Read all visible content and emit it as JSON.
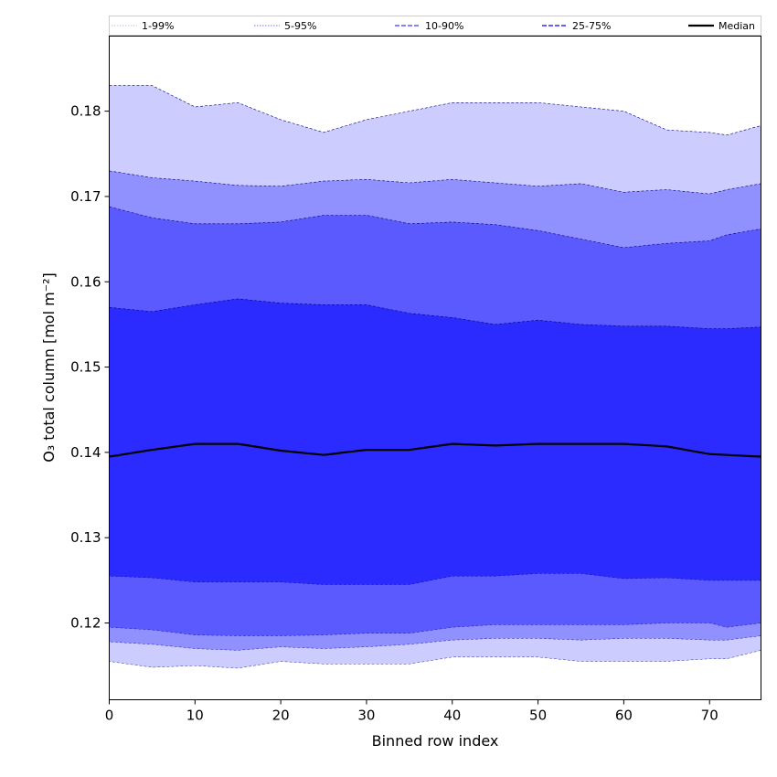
{
  "chart_data": {
    "type": "area",
    "xlabel": "Binned row index",
    "ylabel": "O₃ total column [mol m⁻²]",
    "xlim": [
      0,
      76
    ],
    "ylim": [
      0.111,
      0.1888
    ],
    "xticks": [
      0,
      10,
      20,
      30,
      40,
      50,
      60,
      70
    ],
    "yticks": [
      0.12,
      0.13,
      0.14,
      0.15,
      0.16,
      0.17,
      0.18
    ],
    "legend": {
      "position": "top",
      "entries": [
        {
          "label": "1-99%",
          "color": "#ccccff",
          "style": "dotted"
        },
        {
          "label": "5-95%",
          "color": "#9090ff",
          "style": "dotted"
        },
        {
          "label": "10-90%",
          "color": "#5a5aff",
          "style": "dashed"
        },
        {
          "label": "25-75%",
          "color": "#2b2bff",
          "style": "dashed"
        },
        {
          "label": "Median",
          "color": "#000000",
          "style": "solid"
        }
      ]
    },
    "x_knots": [
      0,
      5,
      10,
      15,
      20,
      25,
      30,
      35,
      40,
      45,
      50,
      55,
      60,
      65,
      70,
      72,
      76
    ],
    "series": [
      {
        "name": "1-99%",
        "color": "#ccccff",
        "lower": [
          0.1155,
          0.1148,
          0.115,
          0.1147,
          0.1155,
          0.1152,
          0.1152,
          0.1152,
          0.116,
          0.116,
          0.116,
          0.1155,
          0.1155,
          0.1155,
          0.1158,
          0.1158,
          0.1168
        ],
        "upper": [
          0.183,
          0.183,
          0.1805,
          0.181,
          0.179,
          0.1775,
          0.179,
          0.18,
          0.181,
          0.181,
          0.181,
          0.1805,
          0.18,
          0.1778,
          0.1775,
          0.1772,
          0.1783
        ]
      },
      {
        "name": "5-95%",
        "color": "#9090ff",
        "lower": [
          0.1178,
          0.1175,
          0.117,
          0.1168,
          0.1172,
          0.117,
          0.1172,
          0.1175,
          0.118,
          0.1182,
          0.1182,
          0.118,
          0.1182,
          0.1182,
          0.118,
          0.118,
          0.1185
        ],
        "upper": [
          0.173,
          0.1722,
          0.1718,
          0.1713,
          0.1712,
          0.1718,
          0.172,
          0.1716,
          0.172,
          0.1716,
          0.1712,
          0.1715,
          0.1705,
          0.1708,
          0.1703,
          0.1708,
          0.1715
        ]
      },
      {
        "name": "10-90%",
        "color": "#5a5aff",
        "lower": [
          0.1195,
          0.1192,
          0.1186,
          0.1185,
          0.1185,
          0.1186,
          0.1188,
          0.1188,
          0.1195,
          0.1198,
          0.1198,
          0.1198,
          0.1198,
          0.12,
          0.12,
          0.1195,
          0.12
        ],
        "upper": [
          0.1688,
          0.1675,
          0.1668,
          0.1668,
          0.167,
          0.1678,
          0.1678,
          0.1668,
          0.167,
          0.1667,
          0.166,
          0.165,
          0.164,
          0.1645,
          0.1648,
          0.1655,
          0.1662
        ]
      },
      {
        "name": "25-75%",
        "color": "#2b2bff",
        "lower": [
          0.1255,
          0.1253,
          0.1248,
          0.1248,
          0.1248,
          0.1245,
          0.1245,
          0.1245,
          0.1255,
          0.1255,
          0.1258,
          0.1258,
          0.1252,
          0.1253,
          0.125,
          0.125,
          0.125
        ],
        "upper": [
          0.157,
          0.1565,
          0.1573,
          0.158,
          0.1575,
          0.1573,
          0.1573,
          0.1563,
          0.1558,
          0.155,
          0.1555,
          0.155,
          0.1548,
          0.1548,
          0.1545,
          0.1545,
          0.1547
        ]
      },
      {
        "name": "Median",
        "color": "#000000",
        "values": [
          0.1395,
          0.1403,
          0.141,
          0.141,
          0.1402,
          0.1397,
          0.1403,
          0.1403,
          0.141,
          0.1408,
          0.141,
          0.141,
          0.141,
          0.1407,
          0.1398,
          0.1397,
          0.1395
        ]
      }
    ]
  }
}
